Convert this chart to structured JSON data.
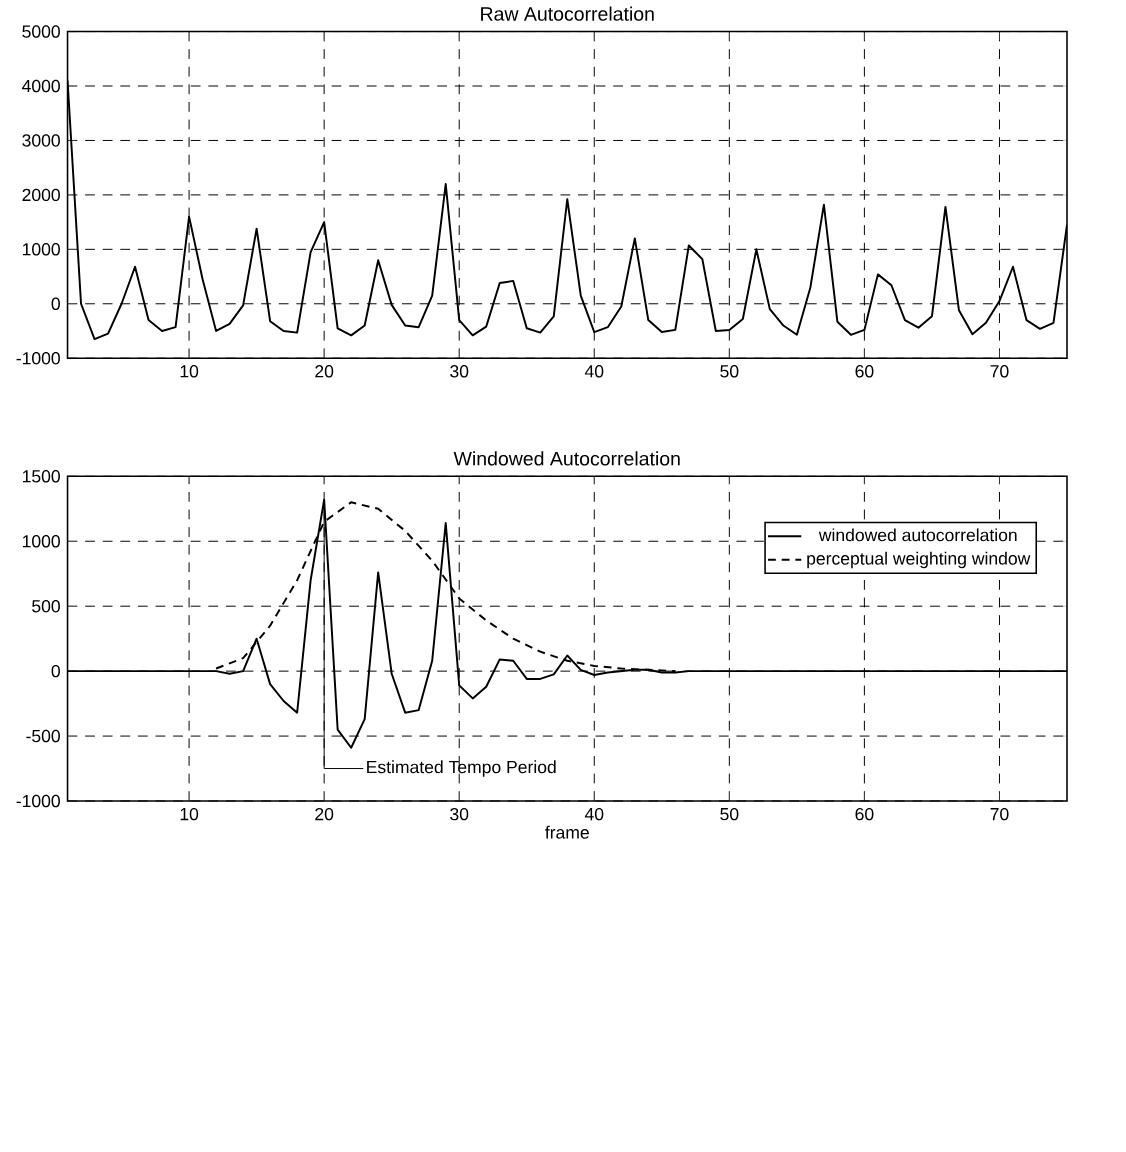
{
  "chart_data": [
    {
      "type": "line",
      "title": "Raw Autocorrelation",
      "x": [
        1,
        2,
        3,
        4,
        5,
        6,
        7,
        8,
        9,
        10,
        11,
        12,
        13,
        14,
        15,
        16,
        17,
        18,
        19,
        20,
        21,
        22,
        23,
        24,
        25,
        26,
        27,
        28,
        29,
        30,
        31,
        32,
        33,
        34,
        35,
        36,
        37,
        38,
        39,
        40,
        41,
        42,
        43,
        44,
        45,
        46,
        47,
        48,
        49,
        50,
        51,
        52,
        53,
        54,
        55,
        56,
        57,
        58,
        59,
        60,
        61,
        62,
        63,
        64,
        65,
        66,
        67,
        68,
        69,
        70,
        71,
        72,
        73,
        74,
        75
      ],
      "series": [
        {
          "color": "#000000",
          "line_style": "solid",
          "values": [
            4100,
            0,
            -650,
            -550,
            0,
            680,
            -300,
            -500,
            -430,
            1600,
            450,
            -500,
            -370,
            -30,
            1380,
            -320,
            -500,
            -530,
            950,
            1500,
            -450,
            -580,
            -400,
            800,
            -20,
            -400,
            -430,
            150,
            2200,
            -300,
            -580,
            -420,
            380,
            420,
            -450,
            -530,
            -230,
            1920,
            150,
            -520,
            -430,
            -50,
            1200,
            -300,
            -520,
            -480,
            1070,
            820,
            -500,
            -480,
            -280,
            1000,
            -100,
            -400,
            -570,
            300,
            1820,
            -330,
            -570,
            -480,
            540,
            340,
            -300,
            -440,
            -230,
            1780,
            -120,
            -560,
            -350,
            50,
            680,
            -300,
            -460,
            -350,
            1450
          ]
        }
      ],
      "xlim": [
        1,
        75
      ],
      "xticks": [
        10,
        20,
        30,
        40,
        50,
        60,
        70
      ],
      "ylim": [
        -1000,
        5000
      ],
      "yticks": [
        -1000,
        0,
        1000,
        2000,
        3000,
        4000,
        5000
      ],
      "grid": true,
      "legend": false
    },
    {
      "type": "line",
      "title": "Windowed Autocorrelation",
      "xlabel": "frame",
      "x": [
        1,
        2,
        3,
        4,
        5,
        6,
        7,
        8,
        9,
        10,
        11,
        12,
        13,
        14,
        15,
        16,
        17,
        18,
        19,
        20,
        21,
        22,
        23,
        24,
        25,
        26,
        27,
        28,
        29,
        30,
        31,
        32,
        33,
        34,
        35,
        36,
        37,
        38,
        39,
        40,
        41,
        42,
        43,
        44,
        45,
        46,
        47,
        48,
        49,
        50,
        51,
        52,
        53,
        54,
        55,
        56,
        57,
        58,
        59,
        60,
        61,
        62,
        63,
        64,
        65,
        66,
        67,
        68,
        69,
        70,
        71,
        72,
        73,
        74,
        75
      ],
      "series": [
        {
          "name": "windowed autocorrelation",
          "color": "#000000",
          "line_style": "solid",
          "values": [
            0,
            0,
            0,
            0,
            0,
            0,
            0,
            0,
            0,
            0,
            0,
            0,
            -20,
            0,
            250,
            -100,
            -230,
            -320,
            700,
            1320,
            -450,
            -590,
            -370,
            760,
            -20,
            -320,
            -300,
            80,
            1140,
            -110,
            -210,
            -120,
            90,
            80,
            -60,
            -60,
            -25,
            120,
            10,
            -30,
            -10,
            0,
            10,
            10,
            -10,
            -10,
            0,
            0,
            0,
            0,
            0,
            0,
            0,
            0,
            0,
            0,
            0,
            0,
            0,
            0,
            0,
            0,
            0,
            0,
            0,
            0,
            0,
            0,
            0,
            0,
            0,
            0,
            0,
            0,
            0
          ]
        },
        {
          "name": "perceptual weighting window",
          "color": "#000000",
          "line_style": "dashed",
          "x": [
            12,
            14,
            16,
            18,
            20,
            22,
            24,
            26,
            28,
            30,
            32,
            34,
            36,
            38,
            40,
            42,
            44,
            46
          ],
          "values": [
            20,
            100,
            350,
            700,
            1150,
            1300,
            1250,
            1080,
            850,
            560,
            390,
            250,
            150,
            80,
            40,
            20,
            10,
            0
          ]
        }
      ],
      "annotations": [
        {
          "text": "Estimated Tempo Period",
          "x": 20,
          "y": 1320
        }
      ],
      "xlim": [
        1,
        75
      ],
      "xticks": [
        10,
        20,
        30,
        40,
        50,
        60,
        70
      ],
      "ylim": [
        -1000,
        1500
      ],
      "yticks": [
        -1000,
        -500,
        0,
        500,
        1000,
        1500
      ],
      "grid": true,
      "legend": "top right"
    }
  ]
}
